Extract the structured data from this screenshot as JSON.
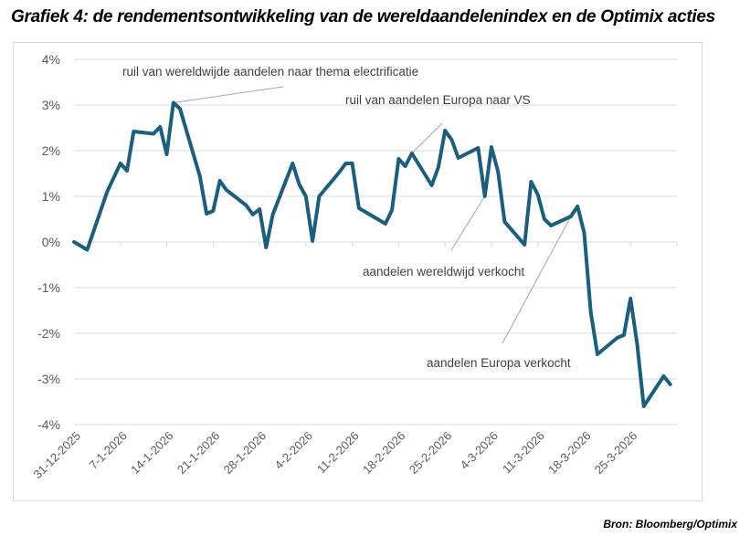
{
  "title": "Grafiek 4: de rendementsontwikkeling van de wereldaandelenindex en de Optimix acties",
  "source": "Bron: Bloomberg/Optimix",
  "colors": {
    "line": "#1b5f80",
    "grid": "#d9d9d9",
    "annotation_line": "#a6a6a6",
    "tick_text": "#595959"
  },
  "chart_data": {
    "type": "line",
    "title": "Grafiek 4: de rendementsontwikkeling van de wereldaandelenindex en de Optimix acties",
    "xlabel": "",
    "ylabel": "",
    "ylim": [
      -4,
      4
    ],
    "y_ticks": [
      4,
      3,
      2,
      1,
      0,
      -1,
      -2,
      -3,
      -4
    ],
    "y_tick_labels": [
      "4%",
      "3%",
      "2%",
      "1%",
      "0%",
      "-1%",
      "-2%",
      "-3%",
      "-4%"
    ],
    "x_range_days": [
      0,
      91
    ],
    "x_tick_labels": [
      "31-12-2025",
      "7-1-2026",
      "14-1-2026",
      "21-1-2026",
      "28-1-2026",
      "4-2-2026",
      "11-2-2026",
      "18-2-2026",
      "25-2-2026",
      "4-3-2026",
      "11-3-2026",
      "18-3-2026",
      "25-3-2026"
    ],
    "grid": true,
    "legend": "none",
    "series": [
      {
        "name": "rendement",
        "unit": "%",
        "points": [
          {
            "date": "31-12-2025",
            "day": 0,
            "value": 0.0
          },
          {
            "date": "2-1-2026",
            "day": 2,
            "value": -0.17
          },
          {
            "date": "5-1-2026",
            "day": 5,
            "value": 1.1
          },
          {
            "date": "7-1-2026",
            "day": 7,
            "value": 1.72
          },
          {
            "date": "8-1-2026",
            "day": 8,
            "value": 1.56
          },
          {
            "date": "9-1-2026",
            "day": 9,
            "value": 2.42
          },
          {
            "date": "12-1-2026",
            "day": 12,
            "value": 2.37
          },
          {
            "date": "13-1-2026",
            "day": 13,
            "value": 2.52
          },
          {
            "date": "14-1-2026",
            "day": 14,
            "value": 1.92
          },
          {
            "date": "15-1-2026",
            "day": 15,
            "value": 3.05
          },
          {
            "date": "16-1-2026",
            "day": 16,
            "value": 2.92
          },
          {
            "date": "19-1-2026",
            "day": 19,
            "value": 1.44
          },
          {
            "date": "20-1-2026",
            "day": 20,
            "value": 0.62
          },
          {
            "date": "21-1-2026",
            "day": 21,
            "value": 0.68
          },
          {
            "date": "22-1-2026",
            "day": 22,
            "value": 1.34
          },
          {
            "date": "23-1-2026",
            "day": 23,
            "value": 1.14
          },
          {
            "date": "26-1-2026",
            "day": 26,
            "value": 0.8
          },
          {
            "date": "27-1-2026",
            "day": 27,
            "value": 0.6
          },
          {
            "date": "28-1-2026",
            "day": 28,
            "value": 0.72
          },
          {
            "date": "29-1-2026",
            "day": 29,
            "value": -0.12
          },
          {
            "date": "30-1-2026",
            "day": 30,
            "value": 0.6
          },
          {
            "date": "2-2-2026",
            "day": 33,
            "value": 1.72
          },
          {
            "date": "3-2-2026",
            "day": 34,
            "value": 1.26
          },
          {
            "date": "4-2-2026",
            "day": 35,
            "value": 1.0
          },
          {
            "date": "5-2-2026",
            "day": 36,
            "value": 0.02
          },
          {
            "date": "6-2-2026",
            "day": 37,
            "value": 1.0
          },
          {
            "date": "9-2-2026",
            "day": 40,
            "value": 1.52
          },
          {
            "date": "10-2-2026",
            "day": 41,
            "value": 1.72
          },
          {
            "date": "11-2-2026",
            "day": 42,
            "value": 1.72
          },
          {
            "date": "12-2-2026",
            "day": 43,
            "value": 0.74
          },
          {
            "date": "16-2-2026",
            "day": 47,
            "value": 0.4
          },
          {
            "date": "17-2-2026",
            "day": 48,
            "value": 0.7
          },
          {
            "date": "18-2-2026",
            "day": 49,
            "value": 1.82
          },
          {
            "date": "19-2-2026",
            "day": 50,
            "value": 1.66
          },
          {
            "date": "20-2-2026",
            "day": 51,
            "value": 1.94
          },
          {
            "date": "23-2-2026",
            "day": 54,
            "value": 1.24
          },
          {
            "date": "24-2-2026",
            "day": 55,
            "value": 1.64
          },
          {
            "date": "25-2-2026",
            "day": 56,
            "value": 2.44
          },
          {
            "date": "26-2-2026",
            "day": 57,
            "value": 2.24
          },
          {
            "date": "27-2-2026",
            "day": 58,
            "value": 1.84
          },
          {
            "date": "2-3-2026",
            "day": 61,
            "value": 2.06
          },
          {
            "date": "3-3-2026",
            "day": 62,
            "value": 1.0
          },
          {
            "date": "4-3-2026",
            "day": 63,
            "value": 2.08
          },
          {
            "date": "5-3-2026",
            "day": 64,
            "value": 1.54
          },
          {
            "date": "6-3-2026",
            "day": 65,
            "value": 0.44
          },
          {
            "date": "9-3-2026",
            "day": 68,
            "value": -0.06
          },
          {
            "date": "10-3-2026",
            "day": 69,
            "value": 1.32
          },
          {
            "date": "11-3-2026",
            "day": 70,
            "value": 1.04
          },
          {
            "date": "12-3-2026",
            "day": 71,
            "value": 0.5
          },
          {
            "date": "13-3-2026",
            "day": 72,
            "value": 0.36
          },
          {
            "date": "16-3-2026",
            "day": 75,
            "value": 0.56
          },
          {
            "date": "17-3-2026",
            "day": 76,
            "value": 0.78
          },
          {
            "date": "18-3-2026",
            "day": 77,
            "value": 0.2
          },
          {
            "date": "19-3-2026",
            "day": 78,
            "value": -1.54
          },
          {
            "date": "20-3-2026",
            "day": 79,
            "value": -2.46
          },
          {
            "date": "23-3-2026",
            "day": 82,
            "value": -2.1
          },
          {
            "date": "24-3-2026",
            "day": 83,
            "value": -2.04
          },
          {
            "date": "25-3-2026",
            "day": 84,
            "value": -1.24
          },
          {
            "date": "26-3-2026",
            "day": 85,
            "value": -2.24
          },
          {
            "date": "27-3-2026",
            "day": 86,
            "value": -3.6
          },
          {
            "date": "30-3-2026",
            "day": 89,
            "value": -2.94
          },
          {
            "date": "31-3-2026",
            "day": 90,
            "value": -3.12
          }
        ]
      }
    ],
    "annotations": [
      {
        "text": "ruil van wereldwijde aandelen naar thema electrificatie",
        "points_to_date": "15-1-2026",
        "points_to_value": 3.05,
        "text_day": 23,
        "text_value": 3.35,
        "anchor": "start"
      },
      {
        "text": "ruil van aandelen Europa naar VS",
        "points_to_date": "20-2-2026",
        "points_to_value": 1.94,
        "text_day": 48,
        "text_value": 2.6,
        "anchor": "start"
      },
      {
        "text": "aandelen wereldwijd verkocht",
        "points_to_date": "3-3-2026",
        "points_to_value": 1.0,
        "text_day": 56,
        "text_value": -0.2,
        "anchor": "start"
      },
      {
        "text": "aandelen Europa verkocht",
        "points_to_date": "16-3-2026",
        "points_to_value": 0.56,
        "text_day": 66,
        "text_value": -2.2,
        "anchor": "start"
      }
    ]
  }
}
